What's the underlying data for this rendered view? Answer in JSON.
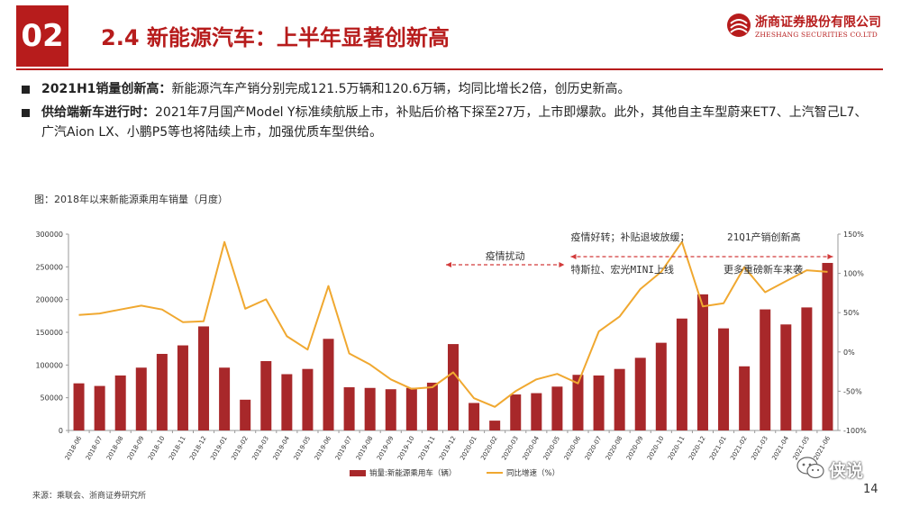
{
  "header": {
    "section_number": "02",
    "title": "2.4 新能源汽车：上半年显著创新高"
  },
  "logo": {
    "name_cn": "浙商证券股份有限公司",
    "name_en": "ZHESHANG SECURITIES CO.LTD"
  },
  "bullets": [
    {
      "bold": "2021H1销量创新高：",
      "text": "新能源汽车产销分别完成121.5万辆和120.6万辆，均同比增长2倍，创历史新高。"
    },
    {
      "bold": "供给端新车进行时：",
      "text": "2021年7月国产Model Y标准续航版上市，补贴后价格下探至27万，上市即爆款。此外，其他自主车型蔚来ET7、上汽智己L7、广汽Aion LX、小鹏P5等也将陆续上市，加强优质车型供给。"
    }
  ],
  "chart_caption": "图：2018年以来新能源乘用车销量（月度）",
  "footer": {
    "source": "来源：乘联会、浙商证券研究所",
    "page_number": "14",
    "watermark": "侠说"
  },
  "chart_data": {
    "type": "bar",
    "title": "",
    "categories": [
      "2018-06",
      "2018-07",
      "2018-08",
      "2018-09",
      "2018-10",
      "2018-11",
      "2018-12",
      "2019-01",
      "2019-02",
      "2019-03",
      "2019-04",
      "2019-05",
      "2019-06",
      "2019-07",
      "2019-08",
      "2019-09",
      "2019-10",
      "2019-11",
      "2019-12",
      "2020-01",
      "2020-02",
      "2020-03",
      "2020-04",
      "2020-05",
      "2020-06",
      "2020-07",
      "2020-08",
      "2020-09",
      "2020-10",
      "2020-11",
      "2020-12",
      "2021-01",
      "2021-02",
      "2021-03",
      "2021-04",
      "2021-05",
      "2021-06"
    ],
    "series": [
      {
        "name": "销量:新能源乘用车（辆）",
        "type": "bar",
        "axis": "left",
        "color": "#a8282a",
        "values": [
          72000,
          68000,
          84000,
          96000,
          117000,
          130000,
          159000,
          96000,
          47000,
          106000,
          86000,
          94000,
          140000,
          66000,
          65000,
          63000,
          65000,
          73000,
          132000,
          42000,
          15000,
          55000,
          57000,
          67000,
          85000,
          84000,
          94000,
          111000,
          134000,
          171000,
          208000,
          156000,
          98000,
          185000,
          162000,
          188000,
          256000
        ]
      },
      {
        "name": "同比增速（%）",
        "type": "line",
        "axis": "right",
        "color": "#f0a830",
        "values": [
          47,
          49,
          54,
          59,
          54,
          38,
          39,
          140,
          55,
          67,
          20,
          3,
          84,
          -2,
          -16,
          -35,
          -47,
          -45,
          -26,
          -59,
          -70,
          -50,
          -35,
          -28,
          -40,
          26,
          45,
          80,
          102,
          140,
          58,
          62,
          108,
          76,
          90,
          104,
          102
        ]
      }
    ],
    "y_left": {
      "min": 0,
      "max": 300000,
      "ticks": [
        0,
        50000,
        100000,
        150000,
        200000,
        250000,
        300000
      ]
    },
    "y_right": {
      "min": -100,
      "max": 150,
      "ticks": [
        "-100%",
        "-50%",
        "0%",
        "50%",
        "100%",
        "150%"
      ]
    },
    "annotations": [
      {
        "text": "疫情扰动",
        "arrow_from": "2019-12",
        "arrow_to": "2020-05"
      },
      {
        "text": "疫情好转；补贴退坡放缓；",
        "under": "2020-06"
      },
      {
        "text": "特斯拉、宏光MINI上线",
        "under": "2020-06"
      },
      {
        "text": "21Q1产销创新高",
        "under": "2021-01"
      },
      {
        "text": "更多重磅新车来袭",
        "under": "2021-01"
      }
    ],
    "legend_position": "bottom-center",
    "grid": false
  }
}
